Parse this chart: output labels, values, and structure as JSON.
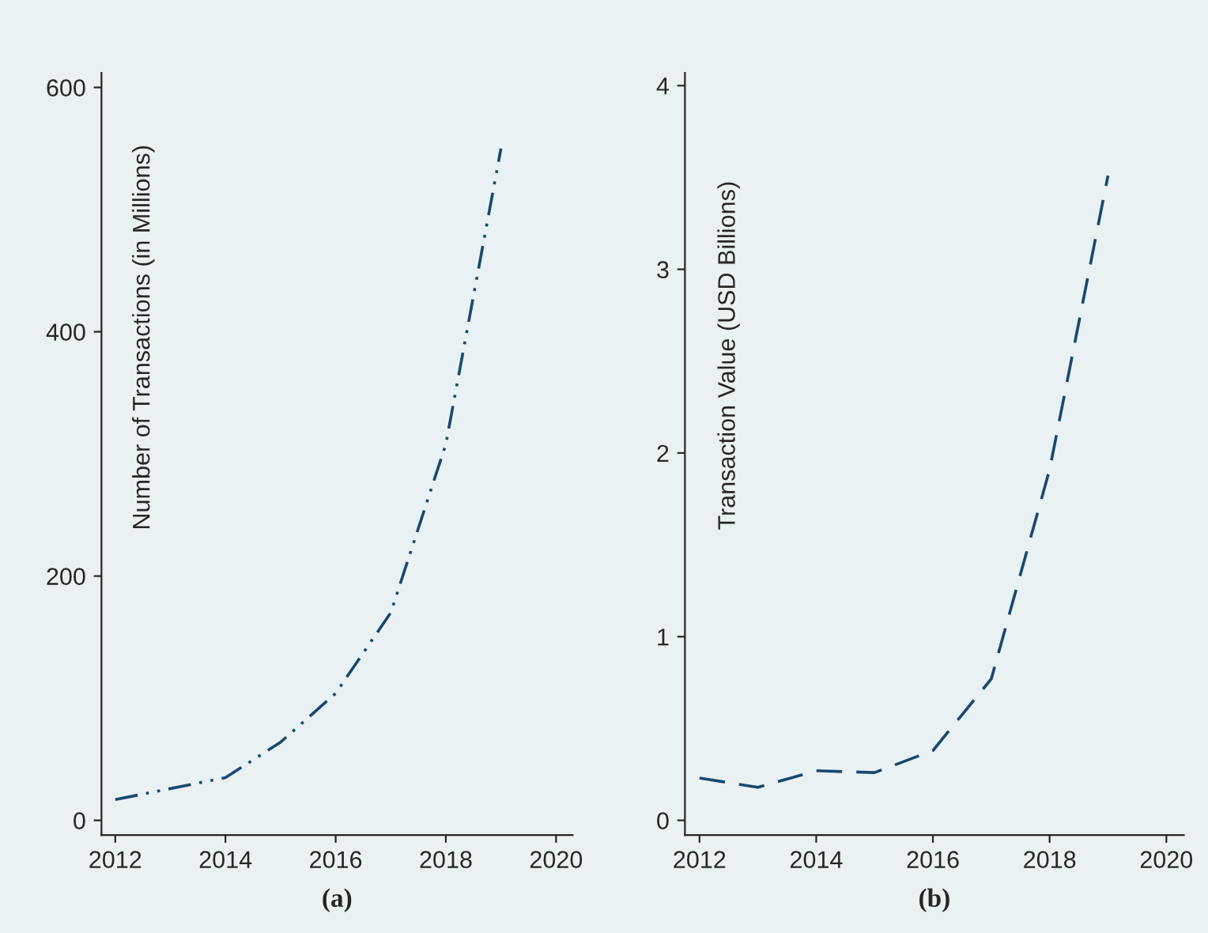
{
  "chart_data": [
    {
      "type": "line",
      "title": "(a)",
      "ylabel": "Number of Transactions (in Millions)",
      "x": [
        2012,
        2013,
        2014,
        2015,
        2016,
        2017,
        2018,
        2019
      ],
      "series": [
        {
          "color": "#1a476f",
          "values": [
            17,
            26,
            35,
            64,
            104,
            170,
            308,
            550
          ]
        }
      ],
      "xlim": [
        2011.75,
        2020.3
      ],
      "xticks": [
        2012,
        2014,
        2016,
        2018,
        2020
      ],
      "ylim": [
        -12,
        612
      ],
      "yticks": [
        0,
        200,
        400,
        600
      ],
      "grid": false,
      "legend": false,
      "line_style": "dashdot"
    },
    {
      "type": "line",
      "title": "(b)",
      "ylabel": "Transaction Value (USD Billions)",
      "x": [
        2012,
        2013,
        2014,
        2015,
        2016,
        2017,
        2018,
        2019
      ],
      "series": [
        {
          "color": "#1a476f",
          "values": [
            0.23,
            0.18,
            0.27,
            0.26,
            0.38,
            0.77,
            1.91,
            3.51
          ]
        }
      ],
      "xlim": [
        2011.75,
        2020.3
      ],
      "xticks": [
        2012,
        2014,
        2016,
        2018,
        2020
      ],
      "ylim": [
        -0.08,
        4.07
      ],
      "yticks": [
        0,
        1,
        2,
        3,
        4
      ],
      "grid": false,
      "legend": false,
      "line_style": "dashed"
    }
  ]
}
